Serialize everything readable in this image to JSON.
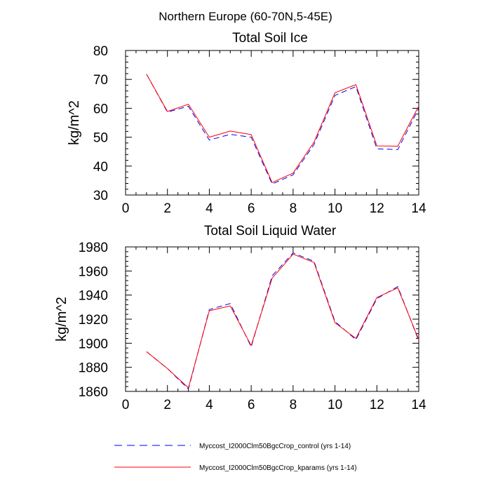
{
  "figure": {
    "title": "Northern Europe (60-70N,5-45E)"
  },
  "legend": {
    "placement": "bottom",
    "entries": [
      {
        "label": "Myccost_I2000Clm50BgcCrop_control (yrs 1-14)",
        "color": "#0000ff",
        "dash": "dashed"
      },
      {
        "label": "Myccost_I2000Clm50BgcCrop_kparams (yrs 1-14)",
        "color": "#ff0000",
        "dash": "solid"
      }
    ]
  },
  "chart_data": [
    {
      "type": "line",
      "title": "Total Soil Ice",
      "xlabel": "",
      "ylabel": "kg/m^2",
      "xlim": [
        0,
        14
      ],
      "ylim": [
        30,
        80
      ],
      "xticks": [
        0,
        2,
        4,
        6,
        8,
        10,
        12,
        14
      ],
      "yticks": [
        30,
        40,
        50,
        60,
        70,
        80
      ],
      "x": [
        1,
        2,
        3,
        4,
        5,
        6,
        7,
        8,
        9,
        10,
        11,
        12,
        13,
        14
      ],
      "series": [
        {
          "name": "Myccost_I2000Clm50BgcCrop_control (yrs 1-14)",
          "color": "#0000ff",
          "values": [
            71.8,
            58.7,
            60.7,
            49.0,
            51.0,
            50.0,
            33.8,
            37.0,
            47.5,
            64.5,
            67.5,
            46.0,
            45.7,
            60.0
          ]
        },
        {
          "name": "Myccost_I2000Clm50BgcCrop_kparams (yrs 1-14)",
          "color": "#ff0000",
          "values": [
            71.8,
            58.9,
            61.4,
            50.0,
            52.1,
            50.9,
            34.3,
            37.6,
            48.3,
            65.4,
            68.2,
            47.0,
            46.9,
            60.8
          ]
        }
      ]
    },
    {
      "type": "line",
      "title": "Total Soil Liquid Water",
      "xlabel": "",
      "ylabel": "kg/m^2",
      "xlim": [
        0,
        14
      ],
      "ylim": [
        1860,
        1980
      ],
      "xticks": [
        0,
        2,
        4,
        6,
        8,
        10,
        12,
        14
      ],
      "yticks": [
        1860,
        1880,
        1900,
        1920,
        1940,
        1960,
        1980
      ],
      "x": [
        1,
        2,
        3,
        4,
        5,
        6,
        7,
        8,
        9,
        10,
        11,
        12,
        13,
        14
      ],
      "series": [
        {
          "name": "Myccost_I2000Clm50BgcCrop_control (yrs 1-14)",
          "color": "#0000ff",
          "values": [
            1893,
            1879,
            1862,
            1928,
            1933,
            1897,
            1956,
            1975,
            1968,
            1918,
            1903,
            1937,
            1947,
            1902
          ]
        },
        {
          "name": "Myccost_I2000Clm50BgcCrop_kparams (yrs 1-14)",
          "color": "#ff0000",
          "values": [
            1893,
            1879,
            1863,
            1927,
            1931,
            1898,
            1954,
            1974,
            1967,
            1917,
            1904,
            1938,
            1946,
            1903
          ]
        }
      ]
    }
  ]
}
